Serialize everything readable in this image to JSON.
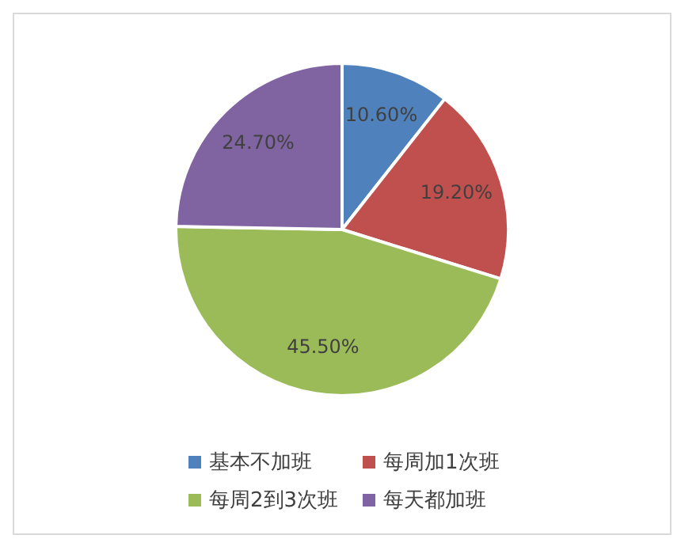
{
  "chart_data": {
    "type": "pie",
    "categories": [
      "基本不加班",
      "每周加1次班",
      "每周2到3次班",
      "每天都加班"
    ],
    "values": [
      10.6,
      19.2,
      45.5,
      24.7
    ],
    "colors": [
      "#4f81bd",
      "#c0504d",
      "#9bbb59",
      "#8064a2"
    ],
    "value_labels": [
      "10.60%",
      "19.20%",
      "45.50%",
      "24.70%"
    ],
    "legend": "bottom"
  }
}
